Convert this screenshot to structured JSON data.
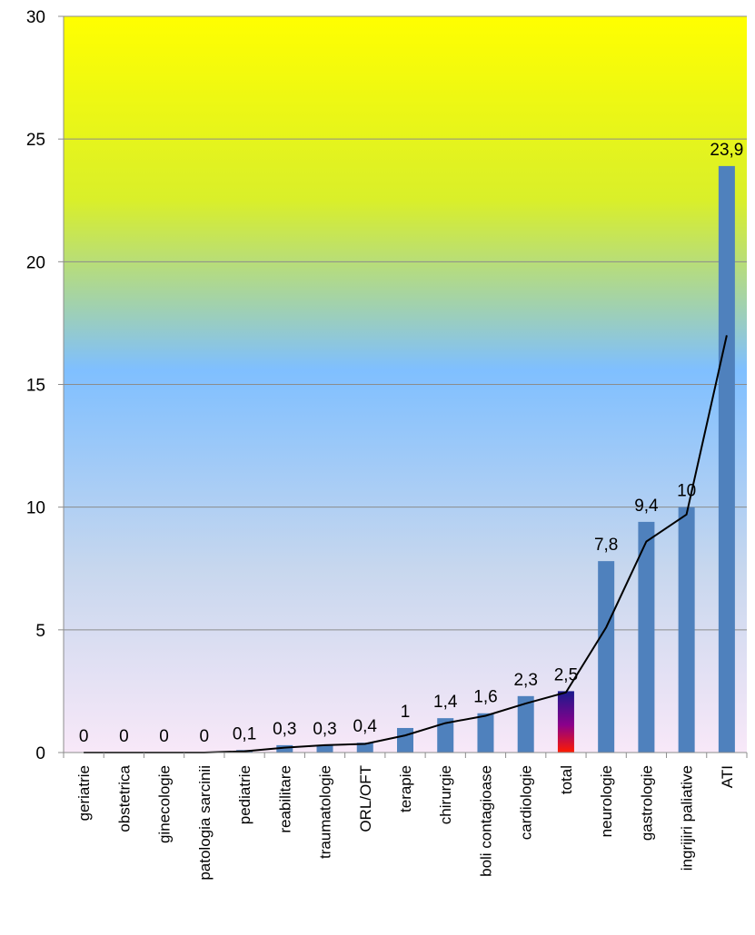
{
  "chart_data": {
    "type": "bar",
    "categories": [
      "geriatrie",
      "obstetrica",
      "ginecologie",
      "patologia sarcinii",
      "pediatrie",
      "reabilitare",
      "traumatologie",
      "ORL/OFT",
      "terapie",
      "chirurgie",
      "boli contagioase",
      "cardiologie",
      "total",
      "neurologie",
      "gastrologie",
      "ingrijiri paliative",
      "ATI"
    ],
    "values": [
      0,
      0,
      0,
      0,
      0.1,
      0.3,
      0.3,
      0.4,
      1,
      1.4,
      1.6,
      2.3,
      2.5,
      7.8,
      9.4,
      10,
      23.9
    ],
    "data_labels": [
      "0",
      "0",
      "0",
      "0",
      "0,1",
      "0,3",
      "0,3",
      "0,4",
      "1",
      "1,4",
      "1,6",
      "2,3",
      "2,5",
      "7,8",
      "9,4",
      "10",
      "23,9"
    ],
    "trendline": [
      0,
      0,
      0,
      0,
      0.05,
      0.2,
      0.3,
      0.35,
      0.7,
      1.2,
      1.5,
      2.0,
      2.45,
      5.1,
      8.6,
      9.7,
      17.0
    ],
    "highlight_category": "total",
    "ylim": [
      0,
      30
    ],
    "yticks": [
      0,
      5,
      10,
      15,
      20,
      25,
      30
    ],
    "grid": true,
    "legend": "none",
    "colors": {
      "bar": "#4f81bd",
      "trendline": "#000000",
      "gridline": "#8c8c8c",
      "highlight_top": "#1a1a8c",
      "highlight_mid": "#8b008b",
      "highlight_bottom": "#ff1a00",
      "bg_top": "#ffff00",
      "bg_upper": "#d9ef2a",
      "bg_middle": "#7fbfff",
      "bg_lower": "#c7d7ee",
      "bg_bottom": "#f8e8f8"
    }
  }
}
